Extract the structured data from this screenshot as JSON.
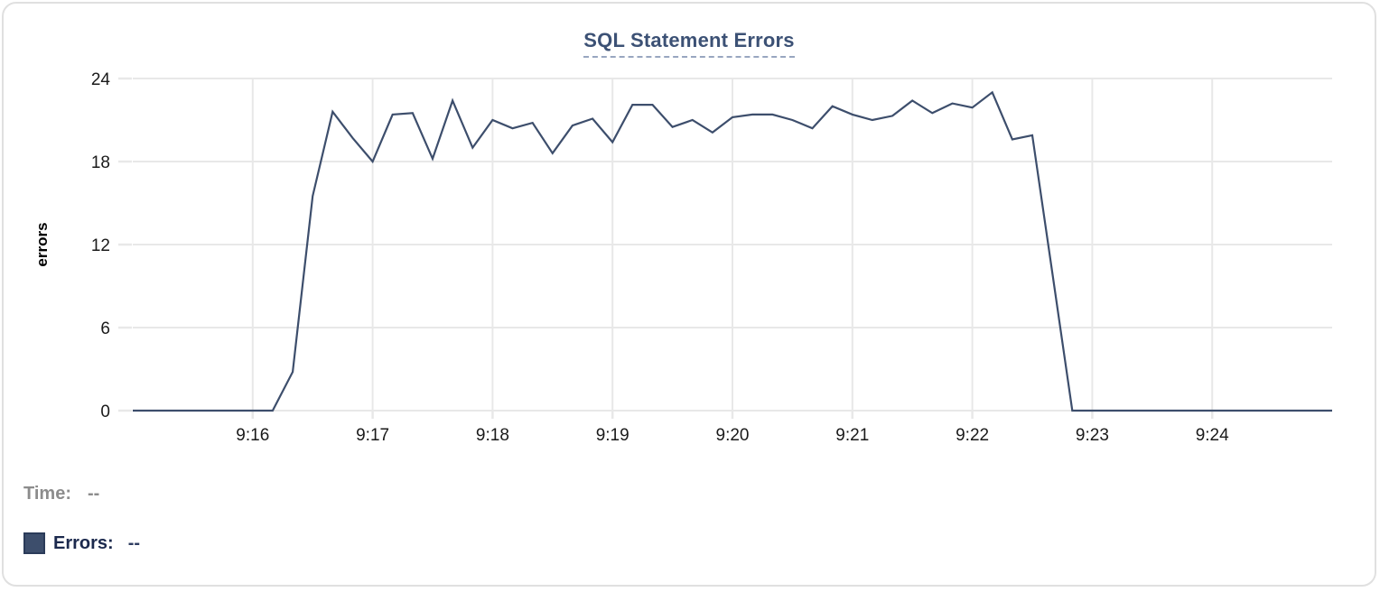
{
  "card": {
    "title": "SQL Statement Errors"
  },
  "tooltip": {
    "time_label": "Time:",
    "time_value": "--",
    "errors_label": "Errors:",
    "errors_value": "--"
  },
  "colors": {
    "line": "#3d4e6c",
    "grid": "#e8e8e8",
    "tick-text": "#1a1a1a",
    "title": "#3c5175",
    "title-underline": "#98a6c0",
    "time-text": "#8c8c8c",
    "errors-text": "#1b294d",
    "errors-value": "#2e3d61",
    "swatch": "#3d4e6c",
    "swatch-border": "#2b3b59",
    "card-border": "#e0e0e0"
  },
  "chart_data": {
    "type": "line",
    "title": "SQL Statement Errors",
    "xlabel": "",
    "ylabel": "errors",
    "ylim": [
      0,
      24
    ],
    "y_ticks": [
      0,
      6,
      12,
      18,
      24
    ],
    "x_ticks": [
      "9:16",
      "9:17",
      "9:18",
      "9:19",
      "9:20",
      "9:21",
      "9:22",
      "9:23",
      "9:24"
    ],
    "x_range": [
      "9:15:00",
      "9:25:00"
    ],
    "sample_interval_seconds": 10,
    "grid": true,
    "legend_position": "bottom-left",
    "series": [
      {
        "name": "Errors",
        "color": "#3d4e6c",
        "times": [
          "9:15:00",
          "9:15:10",
          "9:15:20",
          "9:15:30",
          "9:15:40",
          "9:15:50",
          "9:16:00",
          "9:16:10",
          "9:16:20",
          "9:16:30",
          "9:16:40",
          "9:16:50",
          "9:17:00",
          "9:17:10",
          "9:17:20",
          "9:17:30",
          "9:17:40",
          "9:17:50",
          "9:18:00",
          "9:18:10",
          "9:18:20",
          "9:18:30",
          "9:18:40",
          "9:18:50",
          "9:19:00",
          "9:19:10",
          "9:19:20",
          "9:19:30",
          "9:19:40",
          "9:19:50",
          "9:20:00",
          "9:20:10",
          "9:20:20",
          "9:20:30",
          "9:20:40",
          "9:20:50",
          "9:21:00",
          "9:21:10",
          "9:21:20",
          "9:21:30",
          "9:21:40",
          "9:21:50",
          "9:22:00",
          "9:22:10",
          "9:22:20",
          "9:22:30",
          "9:22:40",
          "9:22:50",
          "9:23:00",
          "9:23:10",
          "9:23:20",
          "9:23:30",
          "9:23:40",
          "9:23:50",
          "9:24:00",
          "9:24:10",
          "9:24:20",
          "9:24:30",
          "9:24:40",
          "9:24:50",
          "9:25:00"
        ],
        "values": [
          0,
          0,
          0,
          0,
          0,
          0,
          0,
          0,
          2.8,
          15.5,
          21.6,
          19.7,
          18,
          21.4,
          21.5,
          18.2,
          22.4,
          19,
          21,
          20.4,
          20.8,
          18.6,
          20.6,
          21.1,
          19.4,
          22.1,
          22.1,
          20.5,
          21,
          20.1,
          21.2,
          21.4,
          21.4,
          21,
          20.4,
          22,
          21.4,
          21,
          21.3,
          22.4,
          21.5,
          22.2,
          21.9,
          23,
          19.6,
          19.9,
          10,
          0,
          0,
          0,
          0,
          0,
          0,
          0,
          0,
          0,
          0,
          0,
          0,
          0,
          0
        ]
      }
    ]
  }
}
